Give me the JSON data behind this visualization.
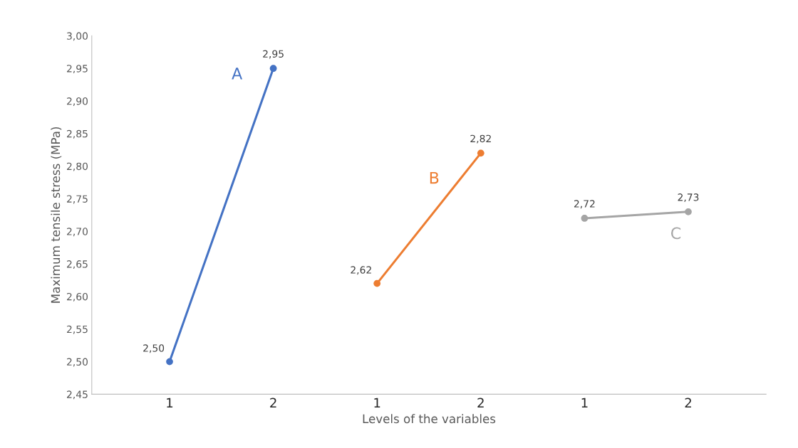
{
  "chart_data": {
    "type": "line",
    "xlabel": "Levels of the variables",
    "ylabel": "Maximum tensile stress (MPa)",
    "categories": [
      "1",
      "2",
      "1",
      "2",
      "1",
      "2"
    ],
    "series": [
      {
        "name": "A",
        "color": "#4472c4",
        "values": [
          2.5,
          2.95,
          null,
          null,
          null,
          null
        ],
        "value_labels": [
          "2,50",
          "2,95",
          null,
          null,
          null,
          null
        ]
      },
      {
        "name": "B",
        "color": "#ed7d31",
        "values": [
          null,
          null,
          2.62,
          2.82,
          null,
          null
        ],
        "value_labels": [
          null,
          null,
          "2,62",
          "2,82",
          null,
          null
        ]
      },
      {
        "name": "C",
        "color": "#a5a5a5",
        "values": [
          null,
          null,
          null,
          null,
          2.72,
          2.73
        ],
        "value_labels": [
          null,
          null,
          null,
          null,
          "2,72",
          "2,73"
        ]
      }
    ],
    "ylim": [
      2.45,
      3.0
    ],
    "yticks": [
      {
        "value": 2.45,
        "label": "2,45"
      },
      {
        "value": 2.5,
        "label": "2,50"
      },
      {
        "value": 2.55,
        "label": "2,55"
      },
      {
        "value": 2.6,
        "label": "2,60"
      },
      {
        "value": 2.65,
        "label": "2,65"
      },
      {
        "value": 2.7,
        "label": "2,70"
      },
      {
        "value": 2.75,
        "label": "2,75"
      },
      {
        "value": 2.8,
        "label": "2,80"
      },
      {
        "value": 2.85,
        "label": "2,85"
      },
      {
        "value": 2.9,
        "label": "2,90"
      },
      {
        "value": 2.95,
        "label": "2,95"
      },
      {
        "value": 3.0,
        "label": "3,00"
      }
    ],
    "grid": false,
    "legend": false,
    "marker": "circle",
    "line_style": "solid"
  }
}
